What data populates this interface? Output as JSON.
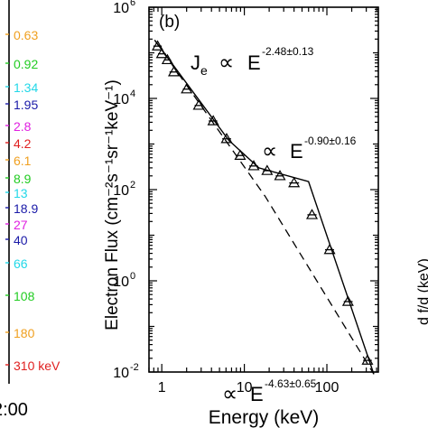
{
  "left_panel": {
    "energy_labels": [
      {
        "text": "0.63",
        "color": "#f0a020"
      },
      {
        "text": "0.92",
        "color": "#22cc22"
      },
      {
        "text": "1.34",
        "color": "#22d8e8"
      },
      {
        "text": "1.95",
        "color": "#1a1aa8"
      },
      {
        "text": "2.8",
        "color": "#e020e0"
      },
      {
        "text": "4.2",
        "color": "#e02020"
      },
      {
        "text": "6.1",
        "color": "#f0a020"
      },
      {
        "text": "8.9",
        "color": "#22cc22"
      },
      {
        "text": "13",
        "color": "#22d8e8"
      },
      {
        "text": "18.9",
        "color": "#1a1aa8"
      },
      {
        "text": "27",
        "color": "#e020e0"
      },
      {
        "text": "40",
        "color": "#1a1aa8"
      },
      {
        "text": "66",
        "color": "#22d8e8"
      },
      {
        "text": "108",
        "color": "#22cc22"
      },
      {
        "text": "180",
        "color": "#f0a020"
      },
      {
        "text": "310 keV",
        "color": "#e02020"
      }
    ],
    "time_tick": "2:00"
  },
  "chart_data": {
    "type": "scatter",
    "panel_label": "(b)",
    "xlabel": "Energy (keV)",
    "ylabel": "Electron Flux (cm⁻²s⁻¹sr⁻¹keV⁻¹)",
    "x_scale": "log",
    "y_scale": "log",
    "xlim": [
      0.7,
      420
    ],
    "ylim": [
      0.01,
      1000000
    ],
    "x_ticks": [
      {
        "value": 1,
        "label": "1"
      },
      {
        "value": 10,
        "label": "10"
      },
      {
        "value": 100,
        "label": "100"
      }
    ],
    "y_ticks": [
      {
        "value": 0.01,
        "label": "10",
        "exp": "-2"
      },
      {
        "value": 1,
        "label": "10",
        "exp": "0"
      },
      {
        "value": 100,
        "label": "10",
        "exp": "2"
      },
      {
        "value": 10000,
        "label": "10",
        "exp": "4"
      },
      {
        "value": 1000000,
        "label": "10",
        "exp": "6"
      }
    ],
    "series": [
      {
        "points": [
          {
            "x": 0.89,
            "y": 140000,
            "xerr": [
              0.79,
              1.0
            ]
          },
          {
            "x": 1.0,
            "y": 95000,
            "xerr": [
              0.9,
              1.12
            ]
          },
          {
            "x": 1.17,
            "y": 70000,
            "xerr": [
              1.06,
              1.29
            ]
          },
          {
            "x": 1.4,
            "y": 38000,
            "xerr": [
              1.24,
              1.57
            ]
          },
          {
            "x": 2.0,
            "y": 16000,
            "xerr": [
              1.8,
              2.25
            ]
          },
          {
            "x": 2.8,
            "y": 7000,
            "xerr": [
              2.5,
              3.1
            ]
          },
          {
            "x": 4.2,
            "y": 3200,
            "xerr": [
              3.7,
              4.7
            ]
          },
          {
            "x": 6.1,
            "y": 1300,
            "xerr": [
              5.4,
              6.9
            ]
          },
          {
            "x": 8.9,
            "y": 560,
            "xerr": [
              7.9,
              10.0
            ]
          },
          {
            "x": 13,
            "y": 330,
            "xerr": [
              11.5,
              14.6
            ]
          },
          {
            "x": 18.9,
            "y": 260,
            "xerr": [
              16.8,
              21.2
            ]
          },
          {
            "x": 27,
            "y": 200,
            "xerr": [
              24,
              30
            ]
          },
          {
            "x": 40,
            "y": 140,
            "xerr": [
              35,
              46
            ]
          },
          {
            "x": 66,
            "y": 28,
            "xerr": [
              58,
              75
            ]
          },
          {
            "x": 108,
            "y": 4.8,
            "xerr": [
              95,
              122
            ]
          },
          {
            "x": 180,
            "y": 0.35,
            "xerr": [
              160,
              205
            ]
          },
          {
            "x": 310,
            "y": 0.018,
            "xerr": [
              275,
              350
            ]
          }
        ]
      }
    ],
    "fit_solid": [
      {
        "x": 0.82,
        "y": 190000
      },
      {
        "x": 6.5,
        "y": 1200
      },
      {
        "x": 15,
        "y": 300
      },
      {
        "x": 60,
        "y": 150
      },
      {
        "x": 370,
        "y": 0.009
      }
    ],
    "fit_dashed": [
      {
        "x": 0.82,
        "y": 190000
      },
      {
        "x": 18,
        "y": 70
      },
      {
        "x": 370,
        "y": 0.009
      }
    ],
    "annotations": {
      "je": {
        "j": "J",
        "sub": "e",
        "prop": "∝",
        "e": "E",
        "exp": "-2.48±0.13"
      },
      "mid": {
        "prop": "∝",
        "e": "E",
        "exp": "-0.90±0.16"
      },
      "high": {
        "prop": "∝",
        "e": "E",
        "exp": "-4.63±0.65"
      }
    }
  },
  "right_panel": {
    "partial_ylabel": "d f/d (keV)"
  }
}
